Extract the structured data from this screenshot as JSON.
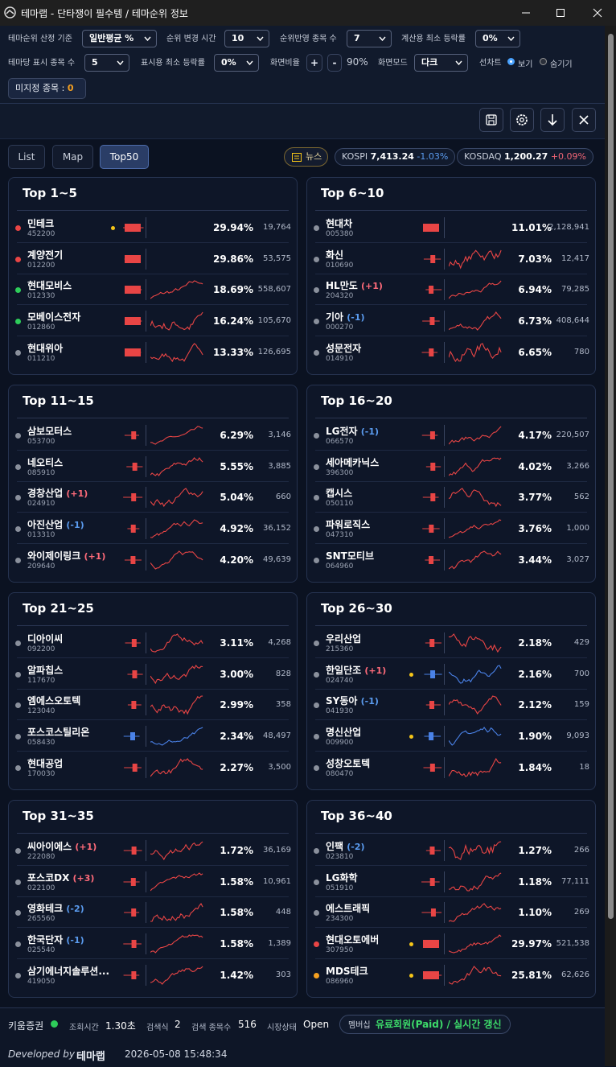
{
  "window": {
    "title": "테마랩 - 단타쟁이 필수템 / 테마순위 정보"
  },
  "settings": {
    "row1": [
      {
        "label": "테마순위 산정 기준",
        "value": "일반평균 %"
      },
      {
        "label": "순위 변경 시간",
        "value": "10"
      },
      {
        "label": "순위반영 종목 수",
        "value": "7"
      },
      {
        "label": "계산용 최소 등락률",
        "value": "0%"
      }
    ],
    "row2": [
      {
        "label": "테마당 표시 종목 수",
        "value": "5"
      },
      {
        "label": "표시용 최소 등락률",
        "value": "0%"
      }
    ],
    "zoom": {
      "label": "화면비율",
      "plus": "+",
      "minus": "-",
      "value": "90%"
    },
    "mode": {
      "label": "화면모드",
      "value": "다크"
    },
    "line_chart": {
      "label": "선차트",
      "options": [
        "보기",
        "숨기기"
      ],
      "selected": 0
    },
    "unassigned": {
      "label": "미지정 종목 :",
      "count": "0"
    }
  },
  "tabs": {
    "items": [
      "List",
      "Map",
      "Top50"
    ],
    "active": 2
  },
  "market": {
    "news": "뉴스",
    "indices": [
      {
        "name": "KOSPI",
        "value": "7,413.24",
        "change": "-1.03%"
      },
      {
        "name": "KOSDAQ",
        "value": "1,200.27",
        "change": "+0.09%"
      }
    ]
  },
  "cards": [
    {
      "title": "Top 1~5",
      "rows": [
        {
          "name": "민테크",
          "code": "452200",
          "dot": "#e84545",
          "marker": "#f5c518",
          "pct": "29.94%",
          "volume": "19,764"
        },
        {
          "name": "계양전기",
          "code": "012200",
          "dot": "#e84545",
          "pct": "29.86%",
          "volume": "53,575"
        },
        {
          "name": "현대모비스",
          "code": "012330",
          "dot": "#2ecc5a",
          "pct": "18.69%",
          "volume": "558,607"
        },
        {
          "name": "모베이스전자",
          "code": "012860",
          "dot": "#2ecc5a",
          "pct": "16.24%",
          "volume": "105,670"
        },
        {
          "name": "현대위아",
          "code": "011210",
          "dot": "#8a909c",
          "pct": "13.33%",
          "volume": "126,695"
        }
      ]
    },
    {
      "title": "Top 6~10",
      "rows": [
        {
          "name": "현대차",
          "code": "005380",
          "dot": "#8a909c",
          "pct": "11.01%",
          "volume": "2,128,941"
        },
        {
          "name": "화신",
          "code": "010690",
          "dot": "#8a909c",
          "pct": "7.03%",
          "volume": "12,417"
        },
        {
          "name": "HL만도",
          "change": "(+1)",
          "code": "204320",
          "dot": "#8a909c",
          "pct": "6.94%",
          "volume": "79,285"
        },
        {
          "name": "기아",
          "change": "(-1)",
          "code": "000270",
          "dot": "#8a909c",
          "pct": "6.73%",
          "volume": "408,644"
        },
        {
          "name": "성문전자",
          "code": "014910",
          "dot": "#8a909c",
          "pct": "6.65%",
          "volume": "780"
        }
      ]
    },
    {
      "title": "Top 11~15",
      "rows": [
        {
          "name": "삼보모터스",
          "code": "053700",
          "dot": "#8a909c",
          "pct": "6.29%",
          "volume": "3,146"
        },
        {
          "name": "네오티스",
          "code": "085910",
          "dot": "#8a909c",
          "pct": "5.55%",
          "volume": "3,885"
        },
        {
          "name": "경창산업",
          "change": "(+1)",
          "code": "024910",
          "dot": "#8a909c",
          "pct": "5.04%",
          "volume": "660"
        },
        {
          "name": "아진산업",
          "change": "(-1)",
          "code": "013310",
          "dot": "#8a909c",
          "pct": "4.92%",
          "volume": "36,152"
        },
        {
          "name": "와이제이링크",
          "change": "(+1)",
          "code": "209640",
          "dot": "#8a909c",
          "pct": "4.20%",
          "volume": "49,639"
        }
      ]
    },
    {
      "title": "Top 16~20",
      "rows": [
        {
          "name": "LG전자",
          "change": "(-1)",
          "code": "066570",
          "dot": "#8a909c",
          "pct": "4.17%",
          "volume": "220,507"
        },
        {
          "name": "세아메카닉스",
          "code": "396300",
          "dot": "#8a909c",
          "pct": "4.02%",
          "volume": "3,266"
        },
        {
          "name": "캡시스",
          "code": "050110",
          "dot": "#8a909c",
          "pct": "3.77%",
          "volume": "562"
        },
        {
          "name": "파워로직스",
          "code": "047310",
          "dot": "#8a909c",
          "pct": "3.76%",
          "volume": "1,000"
        },
        {
          "name": "SNT모티브",
          "code": "064960",
          "dot": "#8a909c",
          "pct": "3.44%",
          "volume": "3,027"
        }
      ]
    },
    {
      "title": "Top 21~25",
      "rows": [
        {
          "name": "디아이씨",
          "code": "092200",
          "dot": "#8a909c",
          "pct": "3.11%",
          "volume": "4,268"
        },
        {
          "name": "알파칩스",
          "code": "117670",
          "dot": "#8a909c",
          "pct": "3.00%",
          "volume": "828"
        },
        {
          "name": "엠에스오토텍",
          "code": "123040",
          "dot": "#8a909c",
          "pct": "2.99%",
          "volume": "358"
        },
        {
          "name": "포스코스틸리온",
          "code": "058430",
          "dot": "#8a909c",
          "color": "#4a82e8",
          "pct": "2.34%",
          "volume": "48,497"
        },
        {
          "name": "현대공업",
          "code": "170030",
          "dot": "#8a909c",
          "pct": "2.27%",
          "volume": "3,500"
        }
      ]
    },
    {
      "title": "Top 26~30",
      "rows": [
        {
          "name": "우리산업",
          "code": "215360",
          "dot": "#8a909c",
          "pct": "2.18%",
          "volume": "429"
        },
        {
          "name": "한일단조",
          "change": "(+1)",
          "code": "024740",
          "dot": "#8a909c",
          "marker": "#f5c518",
          "color": "#4a82e8",
          "pct": "2.16%",
          "volume": "700"
        },
        {
          "name": "SY동아",
          "change": "(-1)",
          "code": "041930",
          "dot": "#8a909c",
          "pct": "2.12%",
          "volume": "159"
        },
        {
          "name": "명신산업",
          "code": "009900",
          "dot": "#8a909c",
          "marker": "#f5c518",
          "color": "#4a82e8",
          "pct": "1.90%",
          "volume": "9,093"
        },
        {
          "name": "성창오토텍",
          "code": "080470",
          "dot": "#8a909c",
          "pct": "1.84%",
          "volume": "18"
        }
      ]
    },
    {
      "title": "Top 31~35",
      "rows": [
        {
          "name": "씨아이에스",
          "change": "(+1)",
          "code": "222080",
          "dot": "#8a909c",
          "pct": "1.72%",
          "volume": "36,169"
        },
        {
          "name": "포스코DX",
          "change": "(+3)",
          "code": "022100",
          "dot": "#8a909c",
          "pct": "1.58%",
          "volume": "10,961"
        },
        {
          "name": "영화테크",
          "change": "(-2)",
          "code": "265560",
          "dot": "#8a909c",
          "pct": "1.58%",
          "volume": "448"
        },
        {
          "name": "한국단자",
          "change": "(-1)",
          "code": "025540",
          "dot": "#8a909c",
          "pct": "1.58%",
          "volume": "1,389"
        },
        {
          "name": "삼기에너지솔루션...",
          "code": "419050",
          "dot": "#8a909c",
          "pct": "1.42%",
          "volume": "303"
        }
      ]
    },
    {
      "title": "Top 36~40",
      "rows": [
        {
          "name": "인팩",
          "change": "(-2)",
          "code": "023810",
          "dot": "#8a909c",
          "pct": "1.27%",
          "volume": "266"
        },
        {
          "name": "LG화학",
          "code": "051910",
          "dot": "#8a909c",
          "pct": "1.18%",
          "volume": "77,111"
        },
        {
          "name": "에스트래픽",
          "code": "234300",
          "dot": "#8a909c",
          "pct": "1.10%",
          "volume": "269"
        },
        {
          "name": "현대오토에버",
          "code": "307950",
          "dot": "#e84545",
          "marker": "#f5c518",
          "pct": "29.97%",
          "volume": "521,538"
        },
        {
          "name": "MDS테크",
          "code": "086960",
          "dot": "#f5a020",
          "marker": "#f5c518",
          "pct": "25.81%",
          "volume": "62,626"
        }
      ]
    }
  ],
  "footer": {
    "broker": "키움증권",
    "items": [
      {
        "label": "조회시간",
        "value": "1.30초"
      },
      {
        "label": "검색식",
        "value": "2"
      },
      {
        "label": "검색 종목수",
        "value": "516"
      },
      {
        "label": "시장상태",
        "value": "Open"
      }
    ],
    "membership": {
      "label": "멤버십",
      "value": "유료회원(Paid) / 실시간 갱신"
    },
    "developed_by": "Developed by",
    "brand": "테마랩",
    "timestamp": "2026-05-08 15:48:34"
  }
}
